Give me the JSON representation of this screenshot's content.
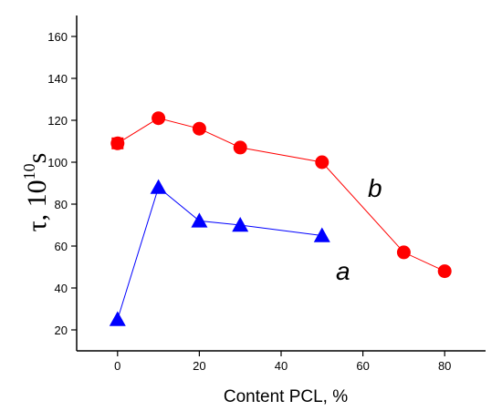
{
  "chart_data": {
    "type": "line",
    "xlabel": "Content PCL, %",
    "ylabel": {
      "symbol": "τ, 10",
      "exponent": "10",
      "unit": "s"
    },
    "xlim": [
      -10,
      90
    ],
    "ylim": [
      10,
      170
    ],
    "x_ticks": [
      0,
      20,
      40,
      60,
      80
    ],
    "y_ticks": [
      20,
      40,
      60,
      80,
      100,
      120,
      140,
      160
    ],
    "grid": false,
    "series": [
      {
        "name": "b",
        "color": "#ff0000",
        "marker": "circle",
        "x": [
          0,
          10,
          20,
          30,
          50,
          70,
          80
        ],
        "y": [
          109,
          121,
          116,
          107,
          100,
          57,
          48
        ]
      },
      {
        "name": "a",
        "color": "#0000ff",
        "marker": "triangle",
        "x": [
          0,
          10,
          20,
          30,
          50
        ],
        "y": [
          25,
          88,
          72,
          70,
          65
        ]
      }
    ],
    "overlay_markers": [
      {
        "series": "overlap",
        "marker": "square",
        "color": "#ff0000",
        "x": 0,
        "y": 109
      }
    ]
  }
}
